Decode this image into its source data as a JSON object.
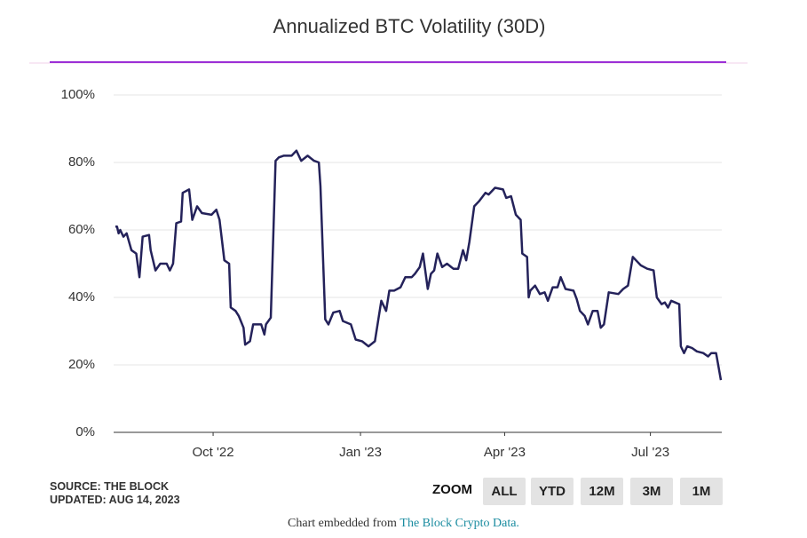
{
  "chart_data": {
    "type": "line",
    "title": "Annualized BTC Volatility (30D)",
    "x": [
      "2022-08-01",
      "2022-08-02",
      "2022-08-03",
      "2022-08-04",
      "2022-08-06",
      "2022-08-08",
      "2022-08-11",
      "2022-08-14",
      "2022-08-16",
      "2022-08-18",
      "2022-08-22",
      "2022-08-23",
      "2022-08-26",
      "2022-08-29",
      "2022-09-02",
      "2022-09-04",
      "2022-09-06",
      "2022-09-08",
      "2022-09-11",
      "2022-09-12",
      "2022-09-16",
      "2022-09-18",
      "2022-09-21",
      "2022-09-24",
      "2022-09-30",
      "2022-10-03",
      "2022-10-05",
      "2022-10-08",
      "2022-10-11",
      "2022-10-12",
      "2022-10-15",
      "2022-10-17",
      "2022-10-20",
      "2022-10-21",
      "2022-10-24",
      "2022-10-26",
      "2022-10-31",
      "2022-11-02",
      "2022-11-03",
      "2022-11-06",
      "2022-11-09",
      "2022-11-11",
      "2022-11-14",
      "2022-11-19",
      "2022-11-22",
      "2022-11-25",
      "2022-11-29",
      "2022-12-03",
      "2022-12-06",
      "2022-12-07",
      "2022-12-10",
      "2022-12-12",
      "2022-12-15",
      "2022-12-19",
      "2022-12-21",
      "2022-12-26",
      "2022-12-29",
      "2023-01-02",
      "2023-01-06",
      "2023-01-10",
      "2023-01-12",
      "2023-01-14",
      "2023-01-17",
      "2023-01-19",
      "2023-01-22",
      "2023-01-26",
      "2023-01-29",
      "2023-02-02",
      "2023-02-04",
      "2023-02-07",
      "2023-02-09",
      "2023-02-12",
      "2023-02-14",
      "2023-02-16",
      "2023-02-18",
      "2023-02-21",
      "2023-02-24",
      "2023-02-28",
      "2023-03-03",
      "2023-03-06",
      "2023-03-08",
      "2023-03-10",
      "2023-03-13",
      "2023-03-16",
      "2023-03-20",
      "2023-03-22",
      "2023-03-26",
      "2023-03-31",
      "2023-04-02",
      "2023-04-05",
      "2023-04-08",
      "2023-04-11",
      "2023-04-12",
      "2023-04-15",
      "2023-04-16",
      "2023-04-17",
      "2023-04-20",
      "2023-04-23",
      "2023-04-26",
      "2023-04-28",
      "2023-05-01",
      "2023-05-04",
      "2023-05-06",
      "2023-05-09",
      "2023-05-14",
      "2023-05-16",
      "2023-05-18",
      "2023-05-21",
      "2023-05-23",
      "2023-05-26",
      "2023-05-29",
      "2023-05-31",
      "2023-06-02",
      "2023-06-05",
      "2023-06-11",
      "2023-06-14",
      "2023-06-17",
      "2023-06-20",
      "2023-06-22",
      "2023-06-25",
      "2023-06-29",
      "2023-07-03",
      "2023-07-05",
      "2023-07-08",
      "2023-07-10",
      "2023-07-12",
      "2023-07-14",
      "2023-07-19",
      "2023-07-20",
      "2023-07-22",
      "2023-07-24",
      "2023-07-27",
      "2023-07-30",
      "2023-08-03",
      "2023-08-06",
      "2023-08-08",
      "2023-08-11",
      "2023-08-14"
    ],
    "series": [
      {
        "color": "#24225a",
        "values": [
          61,
          61,
          59,
          60,
          58,
          59,
          54,
          53,
          46,
          58,
          58.5,
          54,
          48,
          50,
          50,
          48,
          50,
          62,
          62.5,
          71,
          72,
          63,
          67,
          65,
          64.5,
          66,
          63,
          51,
          50,
          37,
          36,
          34.5,
          31,
          26,
          27,
          32,
          32,
          29,
          32,
          34,
          80.5,
          81.5,
          82,
          82,
          83.5,
          80.5,
          82,
          80.5,
          80,
          73,
          33.5,
          32,
          35.5,
          36,
          33,
          32,
          27.5,
          27,
          25.5,
          27,
          33,
          39,
          36,
          42,
          42,
          43,
          46,
          46,
          47,
          49,
          53,
          42.5,
          47,
          48,
          53,
          49,
          50,
          48.5,
          48.5,
          54,
          51,
          56.5,
          67,
          68.5,
          71,
          70.5,
          72.5,
          72,
          69.5,
          70,
          64.5,
          63,
          53,
          52,
          40,
          42,
          43.5,
          41,
          41.5,
          39,
          43,
          43,
          46,
          42.5,
          42,
          39.5,
          36,
          34.5,
          32,
          36,
          36,
          31,
          32,
          41.5,
          41,
          42.5,
          43.5,
          52,
          51,
          49.5,
          48.5,
          48,
          40,
          38,
          38.5,
          37,
          39,
          38,
          25.5,
          23.5,
          25.5,
          25,
          24,
          23.5,
          22.5,
          23.5,
          23.5,
          15.5
        ]
      }
    ],
    "xlim": [
      "2022-08-01",
      "2023-08-14"
    ],
    "xticks": [
      {
        "value": "2022-10-01",
        "label": "Oct '22"
      },
      {
        "value": "2023-01-01",
        "label": "Jan '23"
      },
      {
        "value": "2023-04-01",
        "label": "Apr '23"
      },
      {
        "value": "2023-07-01",
        "label": "Jul '23"
      }
    ],
    "ylim": [
      0,
      100
    ],
    "yticks": [
      {
        "value": 0,
        "label": "0%"
      },
      {
        "value": 20,
        "label": "20%"
      },
      {
        "value": 40,
        "label": "40%"
      },
      {
        "value": 60,
        "label": "60%"
      },
      {
        "value": 80,
        "label": "80%"
      },
      {
        "value": 100,
        "label": "100%"
      }
    ],
    "grid": true
  },
  "source": "SOURCE: THE BLOCK",
  "updated": "UPDATED: AUG 14, 2023",
  "zoom": {
    "label": "ZOOM",
    "buttons": [
      "ALL",
      "YTD",
      "12M",
      "3M",
      "1M"
    ]
  },
  "footer": {
    "text": "Chart embedded from",
    "link": "The Block Crypto Data."
  }
}
